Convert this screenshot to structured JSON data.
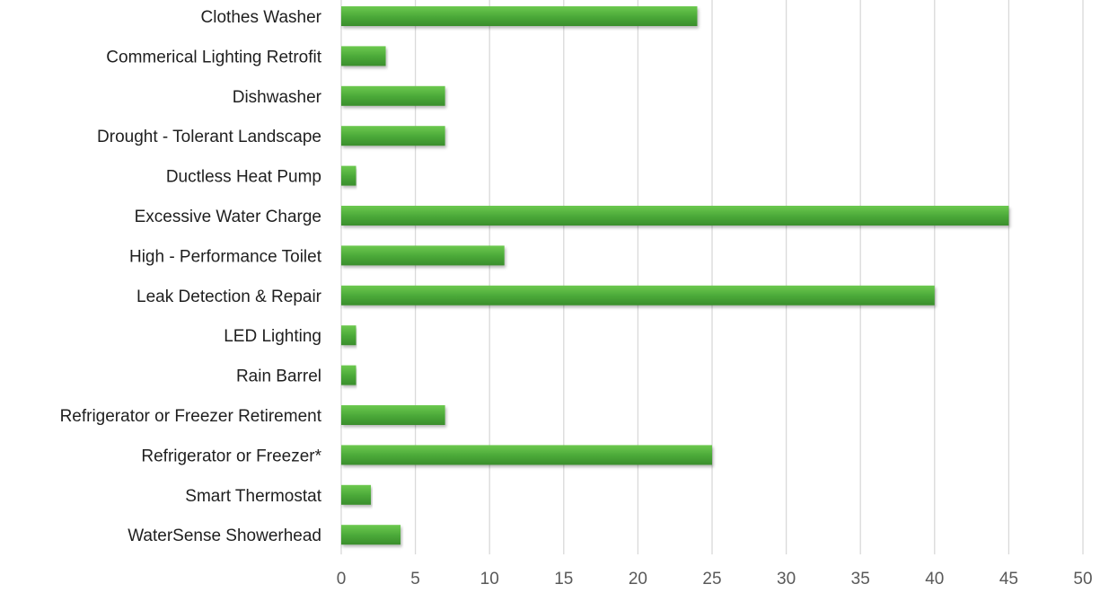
{
  "chart_data": {
    "type": "bar",
    "orientation": "horizontal",
    "categories": [
      "Clothes Washer",
      "Commerical Lighting Retrofit",
      "Dishwasher",
      "Drought - Tolerant Landscape",
      "Ductless Heat Pump",
      "Excessive Water Charge",
      "High - Performance Toilet",
      "Leak Detection & Repair",
      "LED Lighting",
      "Rain Barrel",
      "Refrigerator or Freezer Retirement",
      "Refrigerator or Freezer*",
      "Smart Thermostat",
      "WaterSense Showerhead"
    ],
    "values": [
      24,
      3,
      7,
      7,
      1,
      45,
      11,
      40,
      1,
      1,
      7,
      25,
      2,
      4
    ],
    "xlim": [
      0,
      50
    ],
    "x_ticks": [
      0,
      5,
      10,
      15,
      20,
      25,
      30,
      35,
      40,
      45,
      50
    ],
    "grid": "vertical",
    "legend": "none",
    "bar_color": "#4aa838",
    "bar_color_light": "#6cc94f",
    "bar_color_dark": "#3a8e2c",
    "title": "",
    "xlabel": "",
    "ylabel": ""
  }
}
